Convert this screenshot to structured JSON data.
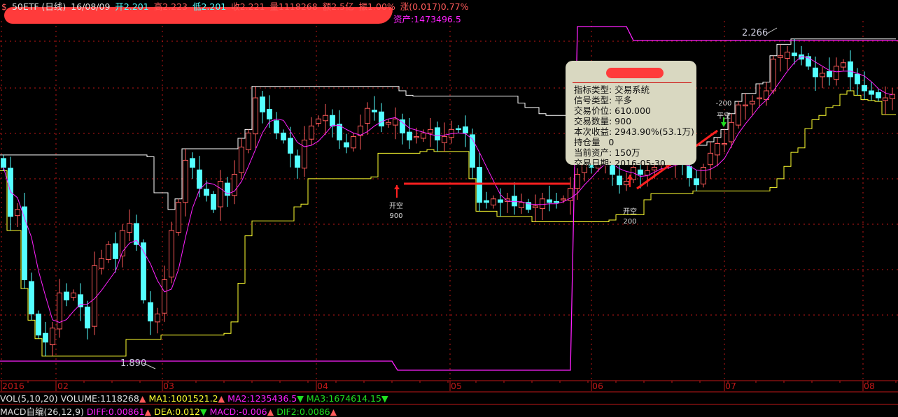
{
  "header": {
    "symbol": "50ETF (日线)",
    "date": "16/08/09",
    "open": "开2.201",
    "high": "高2.223",
    "low": "低2.201",
    "close": "收2.221",
    "volume": "量1118268",
    "amount": "额2.5亿",
    "amplitude": "振1.00%",
    "change": "涨(0.017)0.77%",
    "asset": "资产:1473496.5"
  },
  "price_labels": {
    "max": "2.266",
    "min": "1.890"
  },
  "tooltip": {
    "rows": [
      "指标类型: 交易系统",
      "信号类型: 平多",
      "交易价位: 610.000",
      "交易数量: 900",
      "本次收益: 2943.90%(53.1万)",
      "持仓量   0",
      "当前资产: 150万",
      "交易日期: 2016-05-30"
    ]
  },
  "signals": [
    {
      "type": "开空",
      "qty": "900",
      "direction": "up",
      "color": "#ff2020"
    },
    {
      "type": "开空",
      "qty": "200",
      "direction": "up",
      "color": "#ff2020"
    },
    {
      "type": "平空",
      "qty": "-200",
      "direction": "down",
      "color": "#20e020"
    }
  ],
  "indicators": {
    "vol": {
      "name": "VOL(5,10,20)",
      "volume": "VOLUME:1118268",
      "ma1": "MA1:1001521.2",
      "ma2": "MA2:1235436.5",
      "ma3": "MA3:1674614.15"
    },
    "macd": {
      "name": "MACD自编(26,12,9)",
      "diff": "DIFF:0.00861",
      "dea": "DEA:0.012",
      "macd": "MACD:-0.006",
      "dif2": "DIF2:0.0086"
    }
  },
  "colors": {
    "up": "#ff5a5a",
    "down": "#54ffff",
    "upper_band": "#ffffff",
    "lower_band": "#ffff30",
    "ma": "#ff20ff",
    "asset_line": "#ff20ff",
    "grid": "#c01818"
  },
  "chart_data": {
    "type": "candlestick",
    "x_ticks": [
      "2016",
      "02",
      "03",
      "04",
      "05",
      "06",
      "07",
      "08"
    ],
    "ylim": [
      1.89,
      2.266
    ],
    "grid": true,
    "close": [
      2.113,
      2.057,
      2.065,
      1.985,
      1.946,
      1.922,
      1.914,
      1.93,
      1.97,
      1.962,
      1.97,
      1.954,
      1.93,
      2.001,
      2.009,
      2.025,
      2.009,
      2.041,
      2.049,
      2.025,
      1.962,
      1.938,
      1.946,
      1.985,
      2.041,
      2.073,
      2.121,
      2.113,
      2.089,
      2.081,
      2.065,
      2.097,
      2.081,
      2.105,
      2.136,
      2.152,
      2.192,
      2.176,
      2.168,
      2.152,
      2.144,
      2.129,
      2.113,
      2.144,
      2.16,
      2.168,
      2.172,
      2.16,
      2.144,
      2.136,
      2.148,
      2.16,
      2.18,
      2.176,
      2.16,
      2.164,
      2.168,
      2.152,
      2.144,
      2.148,
      2.152,
      2.156,
      2.144,
      2.148,
      2.156,
      2.156,
      2.152,
      2.113,
      2.073,
      2.073,
      2.077,
      2.073,
      2.077,
      2.069,
      2.073,
      2.065,
      2.069,
      2.077,
      2.073,
      2.073,
      2.077,
      2.089,
      2.105,
      2.121,
      2.113,
      2.121,
      2.125,
      2.105,
      2.093,
      2.097,
      2.113,
      2.105,
      2.109,
      2.113,
      2.117,
      2.117,
      2.121,
      2.117,
      2.101,
      2.093,
      2.113,
      2.129,
      2.14,
      2.14,
      2.164,
      2.184,
      2.184,
      2.188,
      2.192,
      2.2,
      2.236,
      2.24,
      2.244,
      2.24,
      2.236,
      2.228,
      2.216,
      2.22,
      2.216,
      2.228,
      2.232,
      2.216,
      2.208,
      2.2,
      2.196,
      2.192,
      2.192,
      2.196
    ]
  }
}
